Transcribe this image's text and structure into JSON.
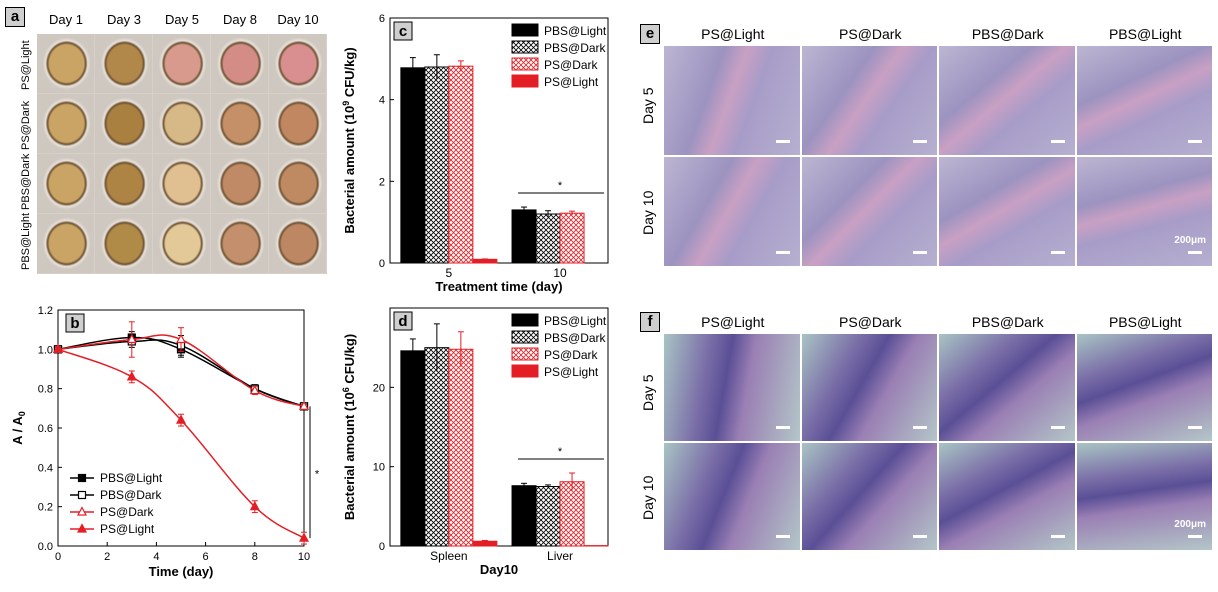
{
  "panel_a": {
    "label": "a",
    "columns": [
      "Day 1",
      "Day 3",
      "Day 5",
      "Day 8",
      "Day 10"
    ],
    "rows": [
      "PS@Light",
      "PS@Dark",
      "PBS@Dark",
      "PBS@Light"
    ]
  },
  "panel_e": {
    "label": "e",
    "columns": [
      "PS@Light",
      "PS@Dark",
      "PBS@Dark",
      "PBS@Light"
    ],
    "rows": [
      "Day 5",
      "Day 10"
    ],
    "scale_text": "200μm"
  },
  "panel_f": {
    "label": "f",
    "columns": [
      "PS@Light",
      "PS@Dark",
      "PBS@Dark",
      "PBS@Light"
    ],
    "rows": [
      "Day 5",
      "Day 10"
    ],
    "scale_text": "200μm"
  },
  "chart_data": [
    {
      "id": "b",
      "type": "line",
      "label": "b",
      "xlabel": "Time (day)",
      "ylabel": "A / A",
      "ylabel_sub": "0",
      "xlim": [
        0,
        10
      ],
      "ylim": [
        0,
        1.2
      ],
      "xticks": [
        0,
        2,
        4,
        6,
        8,
        10
      ],
      "yticks": [
        0.0,
        0.2,
        0.4,
        0.6,
        0.8,
        1.0,
        1.2
      ],
      "ytick_labels": [
        "0.0",
        "0.2",
        "0.4",
        "0.6",
        "0.8",
        "1.0",
        "1.2"
      ],
      "x": [
        0,
        3,
        5,
        8,
        10
      ],
      "series": [
        {
          "name": "PBS@Light",
          "values": [
            1.0,
            1.06,
            1.0,
            0.8,
            0.71
          ],
          "errors": [
            0.01,
            0.03,
            0.04,
            0.02,
            0.01
          ],
          "color": "#000000",
          "marker": "square-filled"
        },
        {
          "name": "PBS@Dark",
          "values": [
            1.0,
            1.04,
            1.02,
            0.8,
            0.71
          ],
          "errors": [
            0.01,
            0.03,
            0.05,
            0.02,
            0.01
          ],
          "color": "#000000",
          "marker": "square-open"
        },
        {
          "name": "PS@Dark",
          "values": [
            1.0,
            1.05,
            1.05,
            0.79,
            0.71
          ],
          "errors": [
            0.01,
            0.09,
            0.06,
            0.02,
            0.01
          ],
          "color": "#e41e25",
          "marker": "triangle-open"
        },
        {
          "name": "PS@Light",
          "values": [
            1.0,
            0.86,
            0.64,
            0.2,
            0.04
          ],
          "errors": [
            0.01,
            0.03,
            0.03,
            0.03,
            0.03
          ],
          "color": "#e41e25",
          "marker": "triangle-filled"
        }
      ],
      "significance": {
        "text": "*",
        "x": 10,
        "y_range": [
          0.04,
          0.71
        ]
      }
    },
    {
      "id": "c",
      "type": "bar",
      "label": "c",
      "xlabel": "Treatment time (day)",
      "ylabel": "Bacterial amount (10",
      "ylabel_sup": "9",
      "ylabel_end": " CFU/kg)",
      "categories": [
        "5",
        "10"
      ],
      "ylim": [
        0,
        6
      ],
      "yticks": [
        0,
        2,
        4,
        6
      ],
      "series": [
        {
          "name": "PBS@Light",
          "values": [
            4.78,
            1.3
          ],
          "errors": [
            0.25,
            0.07
          ],
          "pattern": "black"
        },
        {
          "name": "PBS@Dark",
          "values": [
            4.8,
            1.2
          ],
          "errors": [
            0.3,
            0.08
          ],
          "pattern": "blackcross"
        },
        {
          "name": "PS@Dark",
          "values": [
            4.82,
            1.22
          ],
          "errors": [
            0.13,
            0.05
          ],
          "pattern": "redcross"
        },
        {
          "name": "PS@Light",
          "values": [
            0.09,
            0.0
          ],
          "errors": [
            0.01,
            0.0
          ],
          "pattern": "red"
        }
      ],
      "significance": {
        "text": "*",
        "category": 1
      }
    },
    {
      "id": "d",
      "type": "bar",
      "label": "d",
      "xlabel": "Day10",
      "ylabel": "Bacterial amount (10",
      "ylabel_sup": "6",
      "ylabel_end": " CFU/kg)",
      "categories": [
        "Spleen",
        "Liver"
      ],
      "ylim": [
        0,
        30
      ],
      "yticks": [
        0,
        10,
        20
      ],
      "series": [
        {
          "name": "PBS@Light",
          "values": [
            24.6,
            7.6
          ],
          "errors": [
            1.5,
            0.3
          ],
          "pattern": "black"
        },
        {
          "name": "PBS@Dark",
          "values": [
            25.0,
            7.5
          ],
          "errors": [
            3.0,
            0.2
          ],
          "pattern": "blackcross"
        },
        {
          "name": "PS@Dark",
          "values": [
            24.8,
            8.1
          ],
          "errors": [
            2.2,
            1.1
          ],
          "pattern": "redcross"
        },
        {
          "name": "PS@Light",
          "values": [
            0.6,
            0.05
          ],
          "errors": [
            0.1,
            0.0
          ],
          "pattern": "red"
        }
      ],
      "significance": {
        "text": "*",
        "category": 1
      }
    }
  ]
}
